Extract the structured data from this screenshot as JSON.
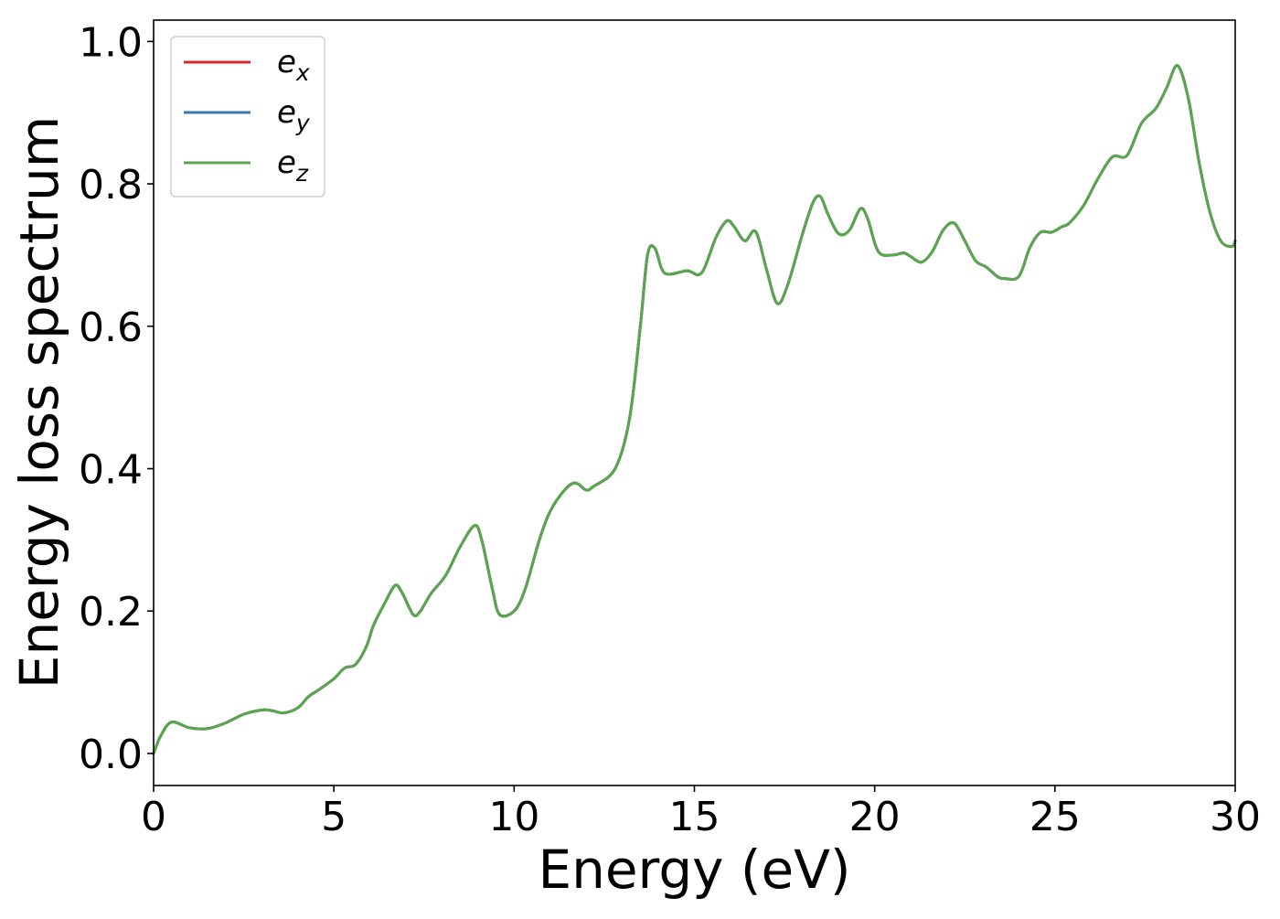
{
  "chart_data": {
    "type": "line",
    "title": "",
    "xlabel": "Energy (eV)",
    "ylabel": "Energy loss spectrum",
    "xlim": [
      0,
      30
    ],
    "ylim": [
      -0.045,
      1.03
    ],
    "xticks": [
      0,
      5,
      10,
      15,
      20,
      25,
      30
    ],
    "xtick_labels": [
      "0",
      "5",
      "10",
      "15",
      "20",
      "25",
      "30"
    ],
    "yticks": [
      0.0,
      0.2,
      0.4,
      0.6,
      0.8,
      1.0
    ],
    "ytick_labels": [
      "0.0",
      "0.2",
      "0.4",
      "0.6",
      "0.8",
      "1.0"
    ],
    "grid": false,
    "legend_position": "top-left",
    "legend": [
      {
        "main": "e",
        "sub": "x",
        "color": "#d62728"
      },
      {
        "main": "e",
        "sub": "y",
        "color": "#3a78b0"
      },
      {
        "main": "e",
        "sub": "z",
        "color": "#5aa64e"
      }
    ],
    "series": [
      {
        "name": "e_x",
        "color": "#d62728",
        "x": [
          0.0,
          0.2,
          0.5,
          1.0,
          1.5,
          2.0,
          2.5,
          3.0,
          3.3,
          3.6,
          4.0,
          4.3,
          4.6,
          5.0,
          5.3,
          5.6,
          5.9,
          6.1,
          6.4,
          6.7,
          6.9,
          7.2,
          7.4,
          7.7,
          8.1,
          8.5,
          8.9,
          9.1,
          9.4,
          9.6,
          10.0,
          10.3,
          10.7,
          11.0,
          11.4,
          11.7,
          12.0,
          12.2,
          12.8,
          13.2,
          13.5,
          13.7,
          13.9,
          14.1,
          14.3,
          14.8,
          15.2,
          15.6,
          15.9,
          16.1,
          16.4,
          16.7,
          17.0,
          17.3,
          17.6,
          18.0,
          18.3,
          18.5,
          18.7,
          19.0,
          19.3,
          19.6,
          19.8,
          20.1,
          20.5,
          20.8,
          21.0,
          21.3,
          21.6,
          21.9,
          22.2,
          22.5,
          22.8,
          23.1,
          23.4,
          23.6,
          24.0,
          24.3,
          24.6,
          24.9,
          25.2,
          25.4,
          25.8,
          26.2,
          26.6,
          27.0,
          27.4,
          27.8,
          28.1,
          28.4,
          28.7,
          29.0,
          29.3,
          29.6,
          29.9,
          30.0
        ],
        "y": [
          0.0,
          0.025,
          0.044,
          0.036,
          0.035,
          0.043,
          0.055,
          0.061,
          0.06,
          0.057,
          0.064,
          0.08,
          0.09,
          0.105,
          0.12,
          0.125,
          0.15,
          0.18,
          0.21,
          0.236,
          0.225,
          0.195,
          0.2,
          0.225,
          0.25,
          0.29,
          0.32,
          0.3,
          0.23,
          0.195,
          0.2,
          0.23,
          0.3,
          0.34,
          0.37,
          0.38,
          0.37,
          0.375,
          0.4,
          0.47,
          0.6,
          0.7,
          0.71,
          0.68,
          0.673,
          0.678,
          0.675,
          0.725,
          0.748,
          0.74,
          0.72,
          0.733,
          0.68,
          0.632,
          0.66,
          0.73,
          0.775,
          0.782,
          0.758,
          0.73,
          0.735,
          0.765,
          0.752,
          0.705,
          0.7,
          0.703,
          0.698,
          0.69,
          0.705,
          0.735,
          0.745,
          0.72,
          0.692,
          0.683,
          0.67,
          0.667,
          0.67,
          0.71,
          0.732,
          0.732,
          0.74,
          0.745,
          0.77,
          0.808,
          0.838,
          0.84,
          0.885,
          0.906,
          0.935,
          0.966,
          0.92,
          0.83,
          0.76,
          0.72,
          0.712,
          0.72
        ]
      },
      {
        "name": "e_y",
        "color": "#3a78b0",
        "x": [
          0.0,
          0.2,
          0.5,
          1.0,
          1.5,
          2.0,
          2.5,
          3.0,
          3.3,
          3.6,
          4.0,
          4.3,
          4.6,
          5.0,
          5.3,
          5.6,
          5.9,
          6.1,
          6.4,
          6.7,
          6.9,
          7.2,
          7.4,
          7.7,
          8.1,
          8.5,
          8.9,
          9.1,
          9.4,
          9.6,
          10.0,
          10.3,
          10.7,
          11.0,
          11.4,
          11.7,
          12.0,
          12.2,
          12.8,
          13.2,
          13.5,
          13.7,
          13.9,
          14.1,
          14.3,
          14.8,
          15.2,
          15.6,
          15.9,
          16.1,
          16.4,
          16.7,
          17.0,
          17.3,
          17.6,
          18.0,
          18.3,
          18.5,
          18.7,
          19.0,
          19.3,
          19.6,
          19.8,
          20.1,
          20.5,
          20.8,
          21.0,
          21.3,
          21.6,
          21.9,
          22.2,
          22.5,
          22.8,
          23.1,
          23.4,
          23.6,
          24.0,
          24.3,
          24.6,
          24.9,
          25.2,
          25.4,
          25.8,
          26.2,
          26.6,
          27.0,
          27.4,
          27.8,
          28.1,
          28.4,
          28.7,
          29.0,
          29.3,
          29.6,
          29.9,
          30.0
        ],
        "y": [
          0.0,
          0.025,
          0.044,
          0.036,
          0.035,
          0.043,
          0.055,
          0.061,
          0.06,
          0.057,
          0.064,
          0.08,
          0.09,
          0.105,
          0.12,
          0.125,
          0.15,
          0.18,
          0.21,
          0.236,
          0.225,
          0.195,
          0.2,
          0.225,
          0.25,
          0.29,
          0.32,
          0.3,
          0.23,
          0.195,
          0.2,
          0.23,
          0.3,
          0.34,
          0.37,
          0.38,
          0.37,
          0.375,
          0.4,
          0.47,
          0.6,
          0.7,
          0.71,
          0.68,
          0.673,
          0.678,
          0.675,
          0.725,
          0.748,
          0.74,
          0.72,
          0.733,
          0.68,
          0.632,
          0.66,
          0.73,
          0.775,
          0.782,
          0.758,
          0.73,
          0.735,
          0.765,
          0.752,
          0.705,
          0.7,
          0.703,
          0.698,
          0.69,
          0.705,
          0.735,
          0.745,
          0.72,
          0.692,
          0.683,
          0.67,
          0.667,
          0.67,
          0.71,
          0.732,
          0.732,
          0.74,
          0.745,
          0.77,
          0.808,
          0.838,
          0.84,
          0.885,
          0.906,
          0.935,
          0.966,
          0.92,
          0.83,
          0.76,
          0.72,
          0.712,
          0.72
        ]
      },
      {
        "name": "e_z",
        "color": "#5aa64e",
        "x": [
          0.0,
          0.2,
          0.5,
          1.0,
          1.5,
          2.0,
          2.5,
          3.0,
          3.3,
          3.6,
          4.0,
          4.3,
          4.6,
          5.0,
          5.3,
          5.6,
          5.9,
          6.1,
          6.4,
          6.7,
          6.9,
          7.2,
          7.4,
          7.7,
          8.1,
          8.5,
          8.9,
          9.1,
          9.4,
          9.6,
          10.0,
          10.3,
          10.7,
          11.0,
          11.4,
          11.7,
          12.0,
          12.2,
          12.8,
          13.2,
          13.5,
          13.7,
          13.9,
          14.1,
          14.3,
          14.8,
          15.2,
          15.6,
          15.9,
          16.1,
          16.4,
          16.7,
          17.0,
          17.3,
          17.6,
          18.0,
          18.3,
          18.5,
          18.7,
          19.0,
          19.3,
          19.6,
          19.8,
          20.1,
          20.5,
          20.8,
          21.0,
          21.3,
          21.6,
          21.9,
          22.2,
          22.5,
          22.8,
          23.1,
          23.4,
          23.6,
          24.0,
          24.3,
          24.6,
          24.9,
          25.2,
          25.4,
          25.8,
          26.2,
          26.6,
          27.0,
          27.4,
          27.8,
          28.1,
          28.4,
          28.7,
          29.0,
          29.3,
          29.6,
          29.9,
          30.0
        ],
        "y": [
          0.0,
          0.025,
          0.044,
          0.036,
          0.035,
          0.043,
          0.055,
          0.061,
          0.06,
          0.057,
          0.064,
          0.08,
          0.09,
          0.105,
          0.12,
          0.125,
          0.15,
          0.18,
          0.21,
          0.236,
          0.225,
          0.195,
          0.2,
          0.225,
          0.25,
          0.29,
          0.32,
          0.3,
          0.23,
          0.195,
          0.2,
          0.23,
          0.3,
          0.34,
          0.37,
          0.38,
          0.37,
          0.375,
          0.4,
          0.47,
          0.6,
          0.7,
          0.71,
          0.68,
          0.673,
          0.678,
          0.675,
          0.725,
          0.748,
          0.74,
          0.72,
          0.733,
          0.68,
          0.632,
          0.66,
          0.73,
          0.775,
          0.782,
          0.758,
          0.73,
          0.735,
          0.765,
          0.752,
          0.705,
          0.7,
          0.703,
          0.698,
          0.69,
          0.705,
          0.735,
          0.745,
          0.72,
          0.692,
          0.683,
          0.67,
          0.667,
          0.67,
          0.71,
          0.732,
          0.732,
          0.74,
          0.745,
          0.77,
          0.808,
          0.838,
          0.84,
          0.885,
          0.906,
          0.935,
          0.966,
          0.92,
          0.83,
          0.76,
          0.72,
          0.712,
          0.72
        ]
      }
    ]
  }
}
